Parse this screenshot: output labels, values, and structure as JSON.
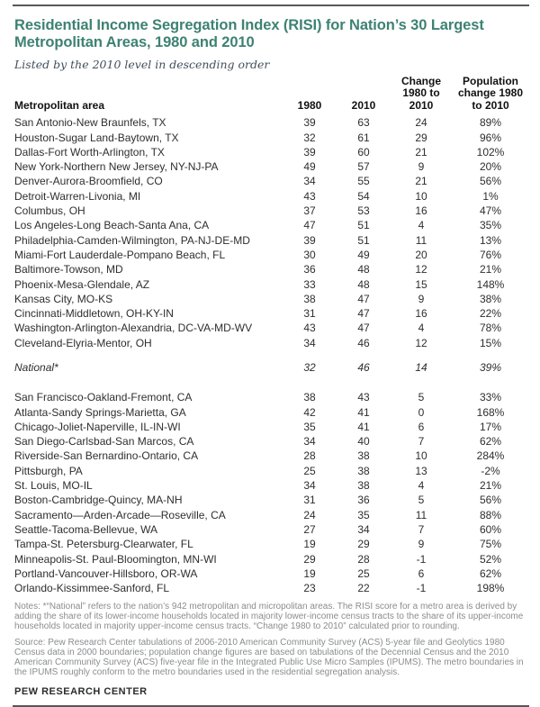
{
  "colors": {
    "accent_title": "#3d8272",
    "rule": "#55575b",
    "body_text": "#2e2e2e",
    "muted_text": "#8a8c8e"
  },
  "chart_data": {
    "type": "table",
    "title": "Residential Income Segregation Index (RISI) for Nation’s 30 Largest Metropolitan Areas, 1980 and 2010",
    "subtitle": "Listed by the 2010 level in descending order",
    "columns": [
      "Metropolitan area",
      "1980",
      "2010",
      "Change 1980 to 2010",
      "Population change 1980 to 2010"
    ],
    "rows": [
      {
        "name": "San Antonio-New Braunfels, TX",
        "v1980": 39,
        "v2010": 63,
        "change": 24,
        "pop_change": "89%"
      },
      {
        "name": "Houston-Sugar Land-Baytown, TX",
        "v1980": 32,
        "v2010": 61,
        "change": 29,
        "pop_change": "96%"
      },
      {
        "name": "Dallas-Fort Worth-Arlington, TX",
        "v1980": 39,
        "v2010": 60,
        "change": 21,
        "pop_change": "102%"
      },
      {
        "name": "New York-Northern New Jersey, NY-NJ-PA",
        "v1980": 49,
        "v2010": 57,
        "change": 9,
        "pop_change": "20%"
      },
      {
        "name": "Denver-Aurora-Broomfield, CO",
        "v1980": 34,
        "v2010": 55,
        "change": 21,
        "pop_change": "56%"
      },
      {
        "name": "Detroit-Warren-Livonia, MI",
        "v1980": 43,
        "v2010": 54,
        "change": 10,
        "pop_change": "1%"
      },
      {
        "name": "Columbus, OH",
        "v1980": 37,
        "v2010": 53,
        "change": 16,
        "pop_change": "47%"
      },
      {
        "name": "Los Angeles-Long Beach-Santa Ana, CA",
        "v1980": 47,
        "v2010": 51,
        "change": 4,
        "pop_change": "35%"
      },
      {
        "name": "Philadelphia-Camden-Wilmington, PA-NJ-DE-MD",
        "v1980": 39,
        "v2010": 51,
        "change": 11,
        "pop_change": "13%"
      },
      {
        "name": "Miami-Fort Lauderdale-Pompano Beach, FL",
        "v1980": 30,
        "v2010": 49,
        "change": 20,
        "pop_change": "76%"
      },
      {
        "name": "Baltimore-Towson, MD",
        "v1980": 36,
        "v2010": 48,
        "change": 12,
        "pop_change": "21%"
      },
      {
        "name": "Phoenix-Mesa-Glendale, AZ",
        "v1980": 33,
        "v2010": 48,
        "change": 15,
        "pop_change": "148%"
      },
      {
        "name": "Kansas City, MO-KS",
        "v1980": 38,
        "v2010": 47,
        "change": 9,
        "pop_change": "38%"
      },
      {
        "name": "Cincinnati-Middletown, OH-KY-IN",
        "v1980": 31,
        "v2010": 47,
        "change": 16,
        "pop_change": "22%"
      },
      {
        "name": "Washington-Arlington-Alexandria, DC-VA-MD-WV",
        "v1980": 43,
        "v2010": 47,
        "change": 4,
        "pop_change": "78%"
      },
      {
        "name": "Cleveland-Elyria-Mentor, OH",
        "v1980": 34,
        "v2010": 46,
        "change": 12,
        "pop_change": "15%"
      },
      {
        "name": "National*",
        "v1980": 32,
        "v2010": 46,
        "change": 14,
        "pop_change": "39%",
        "national": true
      },
      {
        "name": "San Francisco-Oakland-Fremont, CA",
        "v1980": 38,
        "v2010": 43,
        "change": 5,
        "pop_change": "33%"
      },
      {
        "name": "Atlanta-Sandy Springs-Marietta, GA",
        "v1980": 42,
        "v2010": 41,
        "change": 0,
        "pop_change": "168%"
      },
      {
        "name": "Chicago-Joliet-Naperville, IL-IN-WI",
        "v1980": 35,
        "v2010": 41,
        "change": 6,
        "pop_change": "17%"
      },
      {
        "name": "San Diego-Carlsbad-San Marcos, CA",
        "v1980": 34,
        "v2010": 40,
        "change": 7,
        "pop_change": "62%"
      },
      {
        "name": "Riverside-San Bernardino-Ontario, CA",
        "v1980": 28,
        "v2010": 38,
        "change": 10,
        "pop_change": "284%"
      },
      {
        "name": "Pittsburgh, PA",
        "v1980": 25,
        "v2010": 38,
        "change": 13,
        "pop_change": "-2%"
      },
      {
        "name": "St. Louis, MO-IL",
        "v1980": 34,
        "v2010": 38,
        "change": 4,
        "pop_change": "21%"
      },
      {
        "name": "Boston-Cambridge-Quincy, MA-NH",
        "v1980": 31,
        "v2010": 36,
        "change": 5,
        "pop_change": "56%"
      },
      {
        "name": "Sacramento—Arden-Arcade—Roseville, CA",
        "v1980": 24,
        "v2010": 35,
        "change": 11,
        "pop_change": "88%"
      },
      {
        "name": "Seattle-Tacoma-Bellevue, WA",
        "v1980": 27,
        "v2010": 34,
        "change": 7,
        "pop_change": "60%"
      },
      {
        "name": "Tampa-St. Petersburg-Clearwater, FL",
        "v1980": 19,
        "v2010": 29,
        "change": 9,
        "pop_change": "75%"
      },
      {
        "name": "Minneapolis-St. Paul-Bloomington, MN-WI",
        "v1980": 29,
        "v2010": 28,
        "change": -1,
        "pop_change": "52%"
      },
      {
        "name": "Portland-Vancouver-Hillsboro, OR-WA",
        "v1980": 19,
        "v2010": 25,
        "change": 6,
        "pop_change": "62%"
      },
      {
        "name": "Orlando-Kissimmee-Sanford, FL",
        "v1980": 23,
        "v2010": 22,
        "change": -1,
        "pop_change": "198%"
      }
    ]
  },
  "notes": "Notes: *“National” refers to the nation’s 942 metropolitan and micropolitan areas. The RISI score for a metro area is derived by adding the share of its lower-income households located in majority lower-income census tracts to the share of its upper-income households located in majority upper-income census tracts. “Change 1980 to 2010” calculated prior to rounding.",
  "source": "Source: Pew Research Center tabulations of 2006-2010 American Community Survey (ACS) 5-year file and Geolytics 1980 Census data in 2000 boundaries; population change figures are based on tabulations of the Decennial Census and the 2010 American Community Survey (ACS) five-year file in the Integrated Public Use Micro Samples (IPUMS). The metro boundaries in the IPUMS roughly conform to the metro boundaries used in the residential segregation analysis.",
  "brand": "PEW RESEARCH CENTER"
}
